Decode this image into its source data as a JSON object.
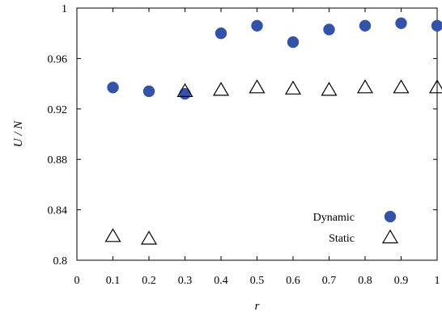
{
  "chart_data": {
    "type": "scatter",
    "xlabel": "r",
    "ylabel": "U / N",
    "xlim": [
      0,
      1
    ],
    "ylim": [
      0.8,
      1
    ],
    "x_ticks": [
      "0",
      "0.1",
      "0.2",
      "0.3",
      "0.4",
      "0.5",
      "0.6",
      "0.7",
      "0.8",
      "0.9",
      "1"
    ],
    "y_ticks": [
      "0.8",
      "0.84",
      "0.88",
      "0.92",
      "0.96",
      "1"
    ],
    "x_tick_values": [
      0,
      0.1,
      0.2,
      0.3,
      0.4,
      0.5,
      0.6,
      0.7,
      0.8,
      0.9,
      1
    ],
    "y_tick_values": [
      0.8,
      0.84,
      0.88,
      0.92,
      0.96,
      1
    ],
    "grid": false,
    "legend_position": "bottom-right",
    "series": [
      {
        "name": "Dynamic",
        "marker": "filled-circle",
        "color": "#3352a8",
        "x": [
          0.1,
          0.2,
          0.3,
          0.4,
          0.5,
          0.6,
          0.7,
          0.8,
          0.9,
          1.0
        ],
        "y": [
          0.937,
          0.934,
          0.932,
          0.98,
          0.986,
          0.973,
          0.983,
          0.986,
          0.988,
          0.986
        ]
      },
      {
        "name": "Static",
        "marker": "open-triangle",
        "color": "#000000",
        "x": [
          0.1,
          0.2,
          0.3,
          0.4,
          0.5,
          0.6,
          0.7,
          0.8,
          0.9,
          1.0
        ],
        "y": [
          0.819,
          0.817,
          0.934,
          0.935,
          0.937,
          0.936,
          0.935,
          0.937,
          0.937,
          0.937
        ]
      }
    ]
  }
}
